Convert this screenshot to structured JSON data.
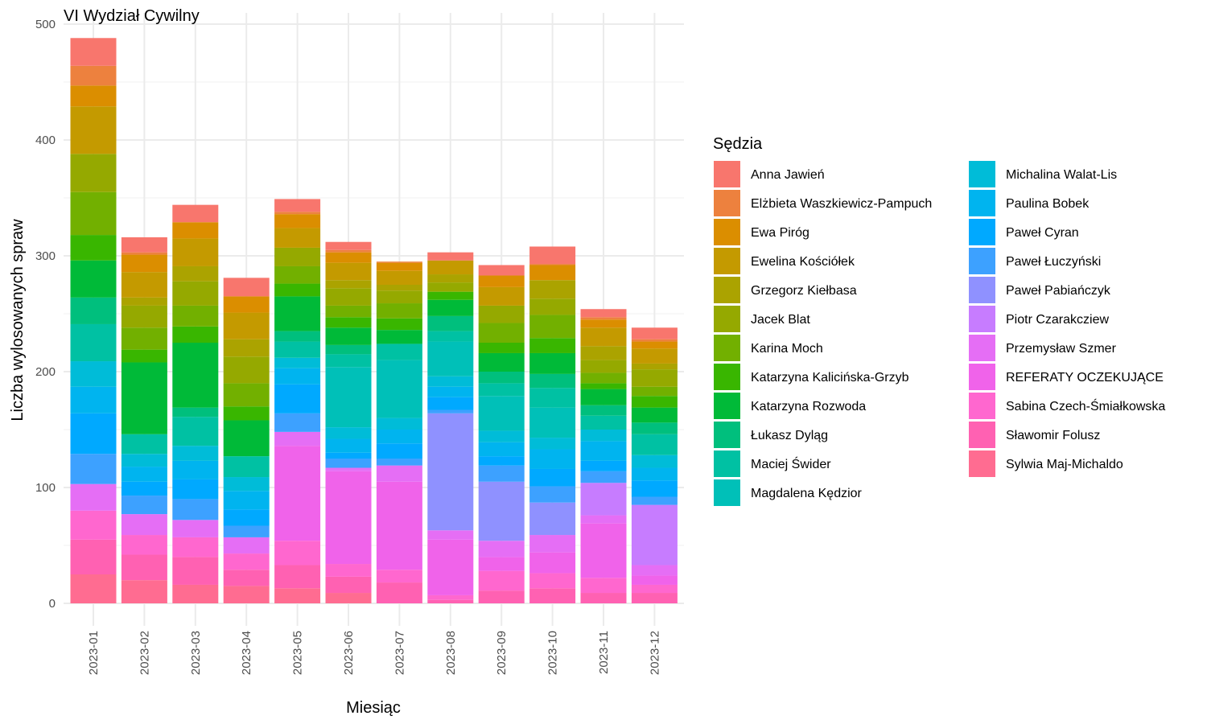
{
  "chart_data": {
    "type": "bar",
    "stacked": true,
    "title": "VI Wydział Cywilny",
    "xlabel": "Miesiąc",
    "ylabel": "Liczba wylosowanych spraw",
    "ylim": [
      0,
      500
    ],
    "yticks": [
      0,
      100,
      200,
      300,
      400,
      500
    ],
    "grid": true,
    "legend_title": "Sędzia",
    "legend_position": "right",
    "categories": [
      "2023-01",
      "2023-02",
      "2023-03",
      "2023-04",
      "2023-05",
      "2023-06",
      "2023-07",
      "2023-08",
      "2023-09",
      "2023-10",
      "2023-11",
      "2023-12"
    ],
    "series": [
      {
        "name": "Sylwia Maj-Michaldo",
        "color": "#FF6C91",
        "values": [
          25,
          20,
          16,
          15,
          13,
          9,
          0,
          0,
          0,
          0,
          0,
          0
        ]
      },
      {
        "name": "Sławomir Folusz",
        "color": "#FF61B2",
        "values": [
          30,
          22,
          24,
          14,
          20,
          14,
          18,
          3,
          11,
          13,
          9,
          9
        ]
      },
      {
        "name": "Sabina Czech-Śmiałkowska",
        "color": "#FF67CF",
        "values": [
          25,
          17,
          17,
          14,
          21,
          11,
          11,
          4,
          17,
          13,
          13,
          7
        ]
      },
      {
        "name": "REFERATY OCZEKUJĄCE",
        "color": "#F063EA",
        "values": [
          0,
          0,
          0,
          0,
          82,
          80,
          76,
          48,
          12,
          18,
          47,
          8
        ]
      },
      {
        "name": "Przemysław Szmer",
        "color": "#E56EF5",
        "values": [
          23,
          18,
          15,
          14,
          12,
          3,
          14,
          8,
          14,
          15,
          7,
          9
        ]
      },
      {
        "name": "Piotr Czarakcziew",
        "color": "#C77CFF",
        "values": [
          0,
          0,
          0,
          0,
          0,
          0,
          0,
          0,
          0,
          0,
          28,
          52
        ]
      },
      {
        "name": "Paweł Pabiańczyk",
        "color": "#8F91FF",
        "values": [
          0,
          0,
          0,
          0,
          0,
          0,
          0,
          101,
          51,
          28,
          0,
          0
        ]
      },
      {
        "name": "Paweł Łuczyński",
        "color": "#3DA1FF",
        "values": [
          26,
          16,
          18,
          10,
          16,
          8,
          6,
          3,
          14,
          14,
          10,
          7
        ]
      },
      {
        "name": "Paweł Cyran",
        "color": "#00A9FF",
        "values": [
          35,
          12,
          17,
          14,
          25,
          5,
          13,
          11,
          8,
          15,
          9,
          14
        ]
      },
      {
        "name": "Paulina Bobek",
        "color": "#00B4EF",
        "values": [
          23,
          13,
          16,
          16,
          14,
          12,
          12,
          9,
          12,
          17,
          17,
          11
        ]
      },
      {
        "name": "Michalina Walat-Lis",
        "color": "#00BCD8",
        "values": [
          22,
          11,
          13,
          12,
          9,
          10,
          10,
          9,
          10,
          10,
          10,
          11
        ]
      },
      {
        "name": "Magdalena Kędzior",
        "color": "#00C0B8",
        "values": [
          0,
          0,
          0,
          0,
          0,
          52,
          50,
          30,
          30,
          26,
          0,
          0
        ]
      },
      {
        "name": "Maciej Świder",
        "color": "#00C1A3",
        "values": [
          32,
          17,
          25,
          18,
          14,
          11,
          14,
          9,
          11,
          17,
          12,
          18
        ]
      },
      {
        "name": "Łukasz Dyląg",
        "color": "#00BF7D",
        "values": [
          23,
          0,
          8,
          0,
          9,
          8,
          0,
          13,
          10,
          12,
          9,
          10
        ]
      },
      {
        "name": "Katarzyna Rozwoda",
        "color": "#00BA38",
        "values": [
          32,
          62,
          56,
          31,
          30,
          15,
          12,
          14,
          16,
          18,
          14,
          13
        ]
      },
      {
        "name": "Katarzyna Kalicińska-Grzyb",
        "color": "#39B600",
        "values": [
          22,
          11,
          14,
          12,
          11,
          9,
          10,
          7,
          9,
          13,
          5,
          10
        ]
      },
      {
        "name": "Karina Moch",
        "color": "#72B000",
        "values": [
          37,
          19,
          18,
          20,
          15,
          10,
          13,
          0,
          17,
          20,
          9,
          8
        ]
      },
      {
        "name": "Jacek Blat",
        "color": "#95A900",
        "values": [
          33,
          19,
          21,
          23,
          16,
          15,
          11,
          8,
          15,
          14,
          11,
          15
        ]
      },
      {
        "name": "Grzegorz Kiełbasa",
        "color": "#ABA300",
        "values": [
          0,
          7,
          13,
          15,
          0,
          7,
          5,
          7,
          0,
          16,
          12,
          5
        ]
      },
      {
        "name": "Ewelina Kościółek",
        "color": "#C49A00",
        "values": [
          41,
          22,
          24,
          23,
          17,
          15,
          12,
          12,
          16,
          0,
          16,
          13
        ]
      },
      {
        "name": "Ewa Piróg",
        "color": "#DB8E00",
        "values": [
          18,
          15,
          14,
          14,
          12,
          9,
          7,
          0,
          10,
          13,
          7,
          6
        ]
      },
      {
        "name": "Elżbieta Waszkiewicz-Pampuch",
        "color": "#ED813E",
        "values": [
          17,
          2,
          0,
          0,
          2,
          2,
          1,
          0,
          0,
          1,
          2,
          2
        ]
      },
      {
        "name": "Anna Jawień",
        "color": "#F8766D",
        "values": [
          24,
          13,
          15,
          16,
          11,
          7,
          0,
          7,
          9,
          15,
          7,
          10
        ]
      }
    ]
  }
}
